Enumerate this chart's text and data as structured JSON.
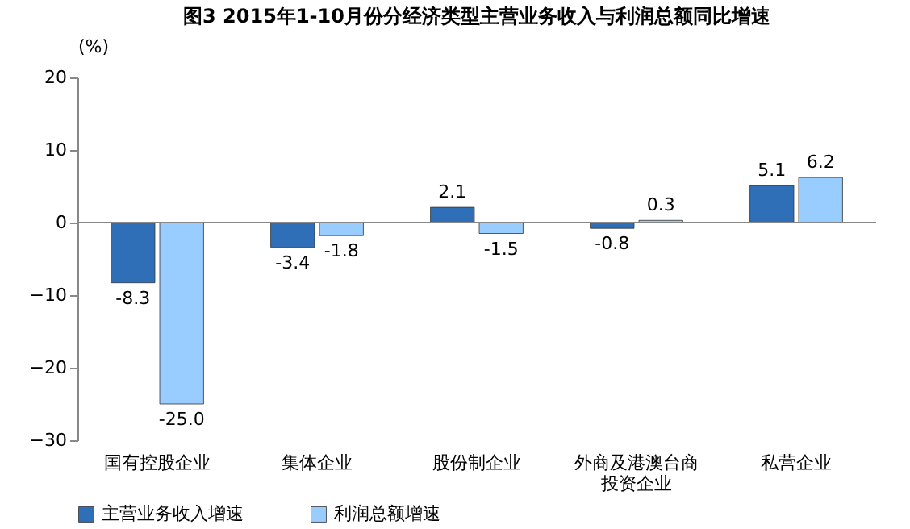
{
  "chart_data": {
    "type": "bar",
    "title": "图3 2015年1-10月份分经济类型主营业务收入与利润总额同比增速",
    "ylabel": "(%)",
    "categories": [
      "国有控股企业",
      "集体企业",
      "股份制企业",
      "外商及港澳台商投资企业",
      "私营企业"
    ],
    "series": [
      {
        "name": "主营业务收入增速",
        "color": "#2e6fb7",
        "values": [
          -8.3,
          -3.4,
          2.1,
          -0.8,
          5.1
        ],
        "value_labels": [
          "-8.3",
          "-3.4",
          "2.1",
          "-0.8",
          "5.1"
        ]
      },
      {
        "name": "利润总额增速",
        "color": "#99ccff",
        "values": [
          -25,
          -1.8,
          -1.5,
          0.3,
          6.2
        ],
        "value_labels": [
          "-25.0",
          "-1.8",
          "-1.5",
          "0.3",
          "6.2"
        ]
      }
    ],
    "ylim": [
      -30,
      20
    ],
    "yticks": [
      -30,
      -20,
      -10,
      0,
      10,
      20
    ],
    "ref_lines": [
      {
        "axis": "y",
        "value": 0
      }
    ],
    "grid": false,
    "legend": "bottom"
  }
}
